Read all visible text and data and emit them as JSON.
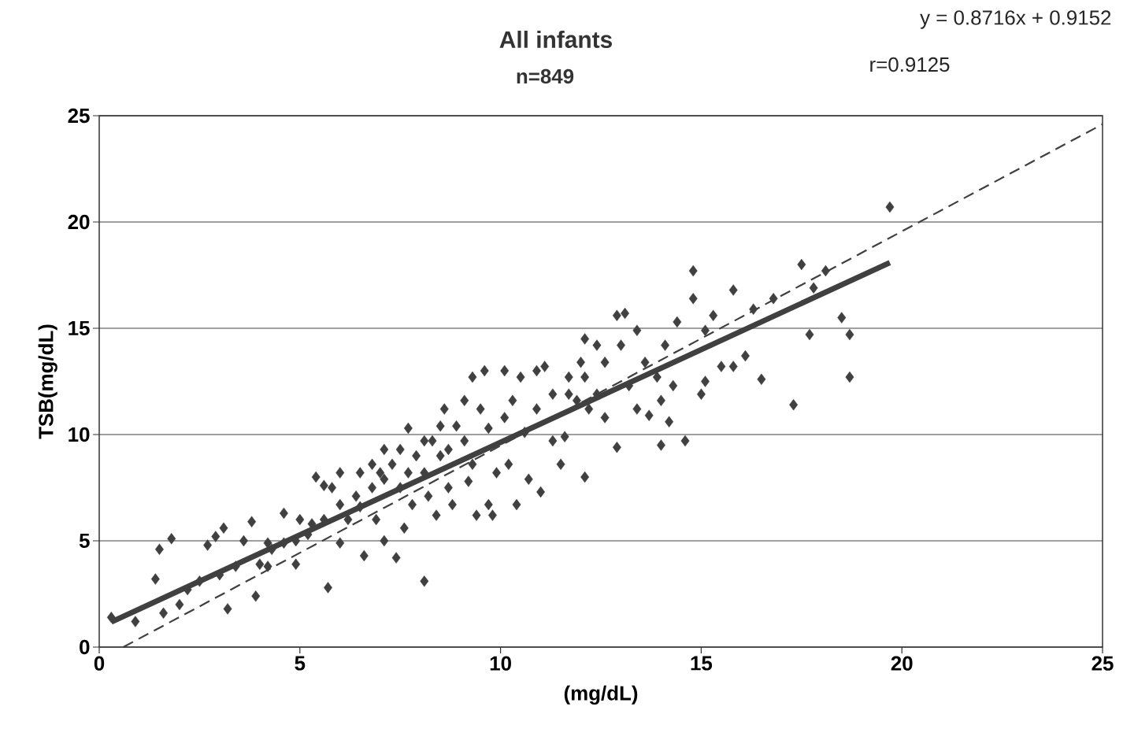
{
  "chart_data": {
    "type": "scatter",
    "title": "All infants",
    "subtitle": "n=849",
    "xlabel": "(mg/dL)",
    "ylabel": "TSB(mg/dL)",
    "annotations": [
      "y = 0.8716x + 0.9152",
      "r=0.9125"
    ],
    "xlim": [
      0,
      25
    ],
    "ylim": [
      0,
      25
    ],
    "xticks": [
      0,
      5,
      10,
      15,
      20,
      25
    ],
    "yticks": [
      0,
      5,
      10,
      15,
      20,
      25
    ],
    "grid": "y",
    "series": [
      {
        "marker": "diamond",
        "color": "#404040",
        "x": [
          0.3,
          0.9,
          1.4,
          1.5,
          1.8,
          1.6,
          2.0,
          2.7,
          2.9,
          3.1,
          3.2,
          3.6,
          3.8,
          3.9,
          4.0,
          4.3,
          4.6,
          4.9,
          4.9,
          5.4,
          5.6,
          6.0,
          5.7,
          6.0,
          6.6,
          7.1,
          7.4,
          8.1,
          7.7,
          7.6,
          8.4,
          5.2,
          5.6,
          6.0,
          6.4,
          6.8,
          7.0,
          7.1,
          7.3,
          7.7,
          7.9,
          8.1,
          8.3,
          8.5,
          8.7,
          8.9,
          9.1,
          9.3,
          9.5,
          9.6,
          9.7,
          9.9,
          10.1,
          10.3,
          10.5,
          10.6,
          10.9,
          11.1,
          11.3,
          11.5,
          11.7,
          11.9,
          12.1,
          12.2,
          12.4,
          12.9,
          12.6,
          12.9,
          13.1,
          13.2,
          13.4,
          13.7,
          14.0,
          14.2,
          14.3,
          13.9,
          14.1,
          14.4,
          14.8,
          14.8,
          15.0,
          15.1,
          15.1,
          15.3,
          15.5,
          15.8,
          15.8,
          16.3,
          16.5,
          16.1,
          17.3,
          16.8,
          17.5,
          17.7,
          17.8,
          18.1,
          18.5,
          18.7,
          18.7,
          19.7,
          5.8,
          6.2,
          6.5,
          6.9,
          7.5,
          7.8,
          8.2,
          8.6,
          8.8,
          9.2,
          9.4,
          9.8,
          10.2,
          10.4,
          10.7,
          11.0,
          11.3,
          11.6,
          12.0,
          12.1,
          12.4,
          12.6,
          13.4,
          13.6,
          14.0,
          14.6,
          5.0,
          4.6,
          4.2,
          3.4,
          3.0,
          2.5,
          2.2,
          4.2,
          5.3,
          9.3,
          9.1,
          8.5,
          8.1,
          7.5,
          7.1,
          6.8,
          6.5,
          10.1,
          10.9,
          11.7,
          12.1,
          13.0,
          9.7,
          8.7
        ],
        "values": [
          1.4,
          1.2,
          3.2,
          4.6,
          5.1,
          1.6,
          2.0,
          4.8,
          5.2,
          5.6,
          1.8,
          5.0,
          5.9,
          2.4,
          3.9,
          4.6,
          6.3,
          5.0,
          3.9,
          8.0,
          7.6,
          8.2,
          2.8,
          4.9,
          4.3,
          5.0,
          4.2,
          3.1,
          10.3,
          5.6,
          6.2,
          5.3,
          6.0,
          6.7,
          7.1,
          7.5,
          8.2,
          7.9,
          8.6,
          8.2,
          9.0,
          8.2,
          9.7,
          9.0,
          9.3,
          10.4,
          9.7,
          8.6,
          11.2,
          13.0,
          10.3,
          8.2,
          10.8,
          11.6,
          12.7,
          10.1,
          11.2,
          13.2,
          11.9,
          8.6,
          12.7,
          11.6,
          8.0,
          11.2,
          11.9,
          9.4,
          13.4,
          15.6,
          15.7,
          12.3,
          11.2,
          10.9,
          9.5,
          10.6,
          12.3,
          12.7,
          14.2,
          15.3,
          17.7,
          16.4,
          11.9,
          12.5,
          14.9,
          15.6,
          13.2,
          13.2,
          16.8,
          15.9,
          12.6,
          13.7,
          11.4,
          16.4,
          18.0,
          14.7,
          16.9,
          17.7,
          15.5,
          14.7,
          12.7,
          20.7,
          7.5,
          6.0,
          6.6,
          6.0,
          7.5,
          6.7,
          7.1,
          11.2,
          6.7,
          7.8,
          6.2,
          6.2,
          8.6,
          6.7,
          7.9,
          7.3,
          9.7,
          9.9,
          13.4,
          14.5,
          14.2,
          10.8,
          14.9,
          13.4,
          11.6,
          9.7,
          6.0,
          4.9,
          3.8,
          3.8,
          3.4,
          3.1,
          2.7,
          4.9,
          5.8,
          12.7,
          11.6,
          10.4,
          9.7,
          9.3,
          9.3,
          8.6,
          8.2,
          13.0,
          13.0,
          11.9,
          12.7,
          14.2,
          6.7,
          7.5
        ]
      },
      {
        "type": "line",
        "line_style": "solid",
        "color": "#404040",
        "x": [
          0.3,
          19.7
        ],
        "values": [
          1.18,
          18.09
        ]
      },
      {
        "type": "line",
        "line_style": "dashed",
        "color": "#404040",
        "x": [
          0.6,
          25
        ],
        "values": [
          0,
          24.6
        ]
      }
    ]
  }
}
